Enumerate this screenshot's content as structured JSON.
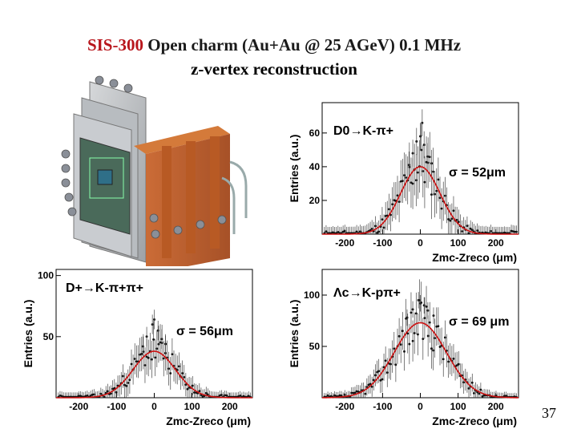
{
  "header": {
    "title_line1_red": "SIS-300",
    "title_line1_rest": "Open charm (Au+Au @ 25 AGeV) 0.1 MHz",
    "title_line2": "z-vertex reconstruction"
  },
  "page_number": "37",
  "colors": {
    "title_red": "#b8161c",
    "fit_curve": "#cc1111",
    "points": "#111111"
  },
  "chart_data": [
    {
      "type": "scatter",
      "title": "",
      "decay_label": "D0→K-π+",
      "sigma_label": "σ = 52μm",
      "xlabel": "Zmc-Zreco (μm)",
      "ylabel": "Entries (a.u.)",
      "xlim": [
        -260,
        260
      ],
      "ylim": [
        0,
        78
      ],
      "xticks": [
        "-200",
        "-100",
        "0",
        "100",
        "200"
      ],
      "yticks": [
        "20",
        "40",
        "60"
      ],
      "ytick_values": [
        20,
        40,
        60
      ],
      "fit": {
        "type": "gaussian",
        "mean": 0,
        "sigma": 52,
        "amplitude": 40
      },
      "peak_points": [
        [
          -10,
          55
        ],
        [
          0,
          58
        ],
        [
          10,
          53
        ],
        [
          -20,
          48
        ],
        [
          20,
          46
        ],
        [
          30,
          42
        ],
        [
          -30,
          41
        ],
        [
          5,
          66
        ]
      ]
    },
    {
      "type": "scatter",
      "title": "",
      "decay_label": "D+→K-π+π+",
      "sigma_label": "σ = 56μm",
      "xlabel": "Zmc-Zreco (μm)",
      "ylabel": "Entries (a.u.)",
      "xlim": [
        -260,
        260
      ],
      "ylim": [
        0,
        105
      ],
      "xticks": [
        "-200",
        "-100",
        "0",
        "100",
        "200"
      ],
      "yticks": [
        "50",
        "100"
      ],
      "ytick_values": [
        50,
        100
      ],
      "fit": {
        "type": "gaussian",
        "mean": 0,
        "sigma": 56,
        "amplitude": 38
      },
      "peak_points": [
        [
          -5,
          60
        ],
        [
          0,
          64
        ],
        [
          10,
          55
        ],
        [
          -20,
          50
        ],
        [
          20,
          48
        ],
        [
          30,
          44
        ],
        [
          -30,
          42
        ]
      ]
    },
    {
      "type": "scatter",
      "title": "",
      "decay_label": "Λc→K-pπ+",
      "sigma_label": "σ = 69 μm",
      "xlabel": "Zmc-Zreco (μm)",
      "ylabel": "Entries (a.u.)",
      "xlim": [
        -260,
        260
      ],
      "ylim": [
        0,
        125
      ],
      "xticks": [
        "-200",
        "-100",
        "0",
        "100",
        "200"
      ],
      "yticks": [
        "50",
        "100"
      ],
      "ytick_values": [
        50,
        100
      ],
      "fit": {
        "type": "gaussian",
        "mean": 0,
        "sigma": 69,
        "amplitude": 73
      },
      "peak_points": [
        [
          -5,
          95
        ],
        [
          0,
          92
        ],
        [
          10,
          90
        ],
        [
          -20,
          86
        ],
        [
          20,
          85
        ],
        [
          35,
          80
        ],
        [
          -35,
          78
        ]
      ]
    }
  ]
}
